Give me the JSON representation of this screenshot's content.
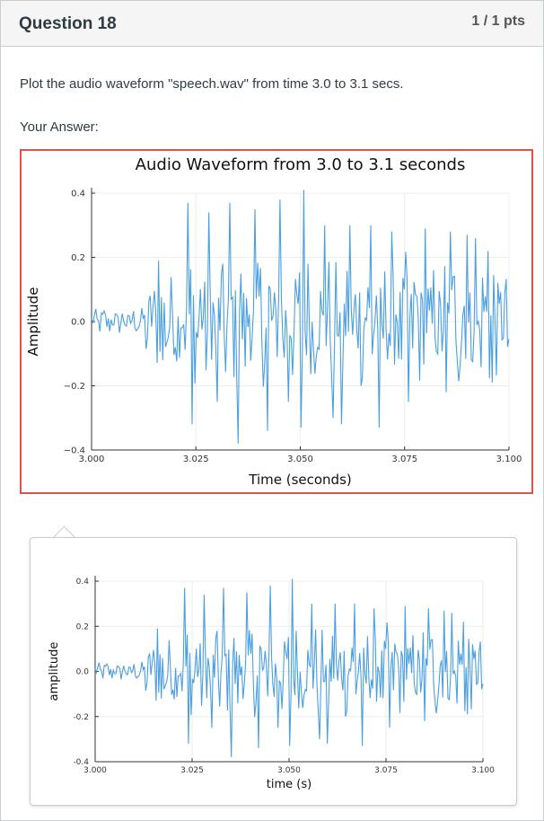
{
  "question": {
    "title": "Question 18",
    "points": "1 / 1 pts",
    "text": "Plot the audio waveform \"speech.wav\" from time 3.0 to 3.1 secs.",
    "answer_label": "Your Answer:"
  },
  "colors": {
    "series": "#4a9fe0",
    "answer_border": "#d9534f"
  },
  "chart_data": [
    {
      "type": "line",
      "title": "Audio Waveform from 3.0 to 3.1 seconds",
      "xlabel": "Time (seconds)",
      "ylabel": "Amplitude",
      "xlim": [
        3.0,
        3.1
      ],
      "ylim": [
        -0.4,
        0.4
      ],
      "xticks": [
        3.0,
        3.025,
        3.05,
        3.075,
        3.1
      ],
      "xtick_labels": [
        "3.000",
        "3.025",
        "3.050",
        "3.075",
        "3.100"
      ],
      "yticks": [
        -0.4,
        -0.2,
        0.0,
        0.2,
        0.4
      ],
      "ytick_labels": [
        "−0.4",
        "−0.2",
        "0.0",
        "0.2",
        "0.4"
      ],
      "grid": true,
      "series": [
        {
          "x_start": 3.0,
          "x_step": 0.000333,
          "values": []
        }
      ]
    },
    {
      "type": "line",
      "title": "",
      "xlabel": "time (s)",
      "ylabel": "amplitude",
      "xlim": [
        3.0,
        3.1
      ],
      "ylim": [
        -0.4,
        0.4
      ],
      "xticks": [
        3.0,
        3.025,
        3.05,
        3.075,
        3.1
      ],
      "xtick_labels": [
        "3.000",
        "3.025",
        "3.050",
        "3.075",
        "3.100"
      ],
      "yticks": [
        -0.4,
        -0.2,
        0.0,
        0.2,
        0.4
      ],
      "ytick_labels": [
        "-0.4",
        "-0.2",
        "0.0",
        "0.2",
        "0.4"
      ],
      "grid": true,
      "series": [
        {
          "x_start": 3.0,
          "x_step": 0.000333,
          "values": []
        }
      ]
    }
  ]
}
